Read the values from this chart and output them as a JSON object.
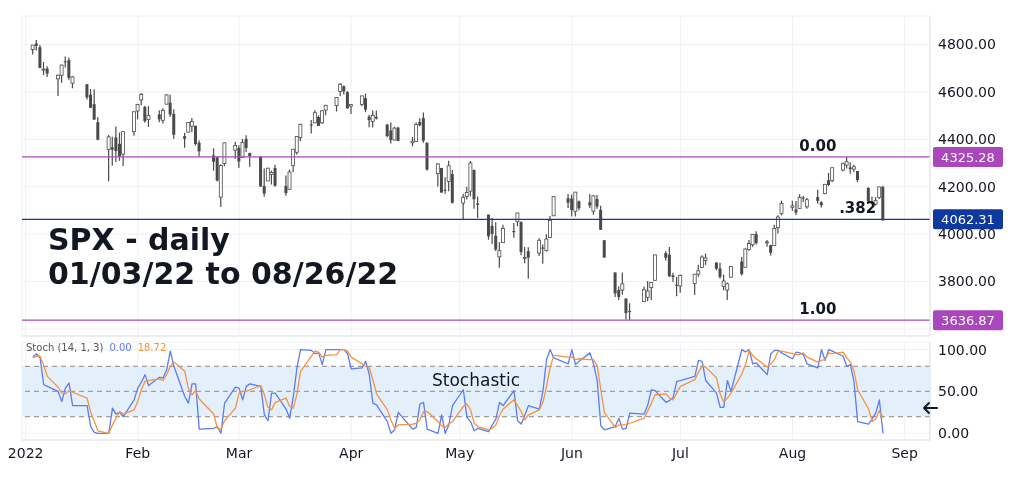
{
  "chart_data": [
    {
      "type": "candlestick",
      "title": "SPX - daily",
      "subtitle": "01/03/22 to 08/26/22",
      "color": "#4a4a4a",
      "x": [
        "2022-01-03",
        "2022-01-04",
        "2022-01-05",
        "2022-01-06",
        "2022-01-07",
        "2022-01-10",
        "2022-01-11",
        "2022-01-12",
        "2022-01-13",
        "2022-01-14",
        "2022-01-18",
        "2022-01-19",
        "2022-01-20",
        "2022-01-21",
        "2022-01-24",
        "2022-01-25",
        "2022-01-26",
        "2022-01-27",
        "2022-01-28",
        "2022-01-31",
        "2022-02-01",
        "2022-02-02",
        "2022-02-03",
        "2022-02-04",
        "2022-02-07",
        "2022-02-08",
        "2022-02-09",
        "2022-02-10",
        "2022-02-11",
        "2022-02-14",
        "2022-02-15",
        "2022-02-16",
        "2022-02-17",
        "2022-02-18",
        "2022-02-22",
        "2022-02-23",
        "2022-02-24",
        "2022-02-25",
        "2022-02-28",
        "2022-03-01",
        "2022-03-02",
        "2022-03-03",
        "2022-03-04",
        "2022-03-07",
        "2022-03-08",
        "2022-03-09",
        "2022-03-10",
        "2022-03-11",
        "2022-03-14",
        "2022-03-15",
        "2022-03-16",
        "2022-03-17",
        "2022-03-18",
        "2022-03-21",
        "2022-03-22",
        "2022-03-23",
        "2022-03-24",
        "2022-03-25",
        "2022-03-28",
        "2022-03-29",
        "2022-03-30",
        "2022-03-31",
        "2022-04-01",
        "2022-04-04",
        "2022-04-05",
        "2022-04-06",
        "2022-04-07",
        "2022-04-08",
        "2022-04-11",
        "2022-04-12",
        "2022-04-13",
        "2022-04-14",
        "2022-04-18",
        "2022-04-19",
        "2022-04-20",
        "2022-04-21",
        "2022-04-22",
        "2022-04-25",
        "2022-04-26",
        "2022-04-27",
        "2022-04-28",
        "2022-04-29",
        "2022-05-02",
        "2022-05-03",
        "2022-05-04",
        "2022-05-05",
        "2022-05-06",
        "2022-05-09",
        "2022-05-10",
        "2022-05-11",
        "2022-05-12",
        "2022-05-13",
        "2022-05-16",
        "2022-05-17",
        "2022-05-18",
        "2022-05-19",
        "2022-05-20",
        "2022-05-23",
        "2022-05-24",
        "2022-05-25",
        "2022-05-26",
        "2022-05-27",
        "2022-05-31",
        "2022-06-01",
        "2022-06-02",
        "2022-06-03",
        "2022-06-06",
        "2022-06-07",
        "2022-06-08",
        "2022-06-09",
        "2022-06-10",
        "2022-06-13",
        "2022-06-14",
        "2022-06-15",
        "2022-06-16",
        "2022-06-17",
        "2022-06-21",
        "2022-06-22",
        "2022-06-23",
        "2022-06-24",
        "2022-06-27",
        "2022-06-28",
        "2022-06-29",
        "2022-06-30",
        "2022-07-01",
        "2022-07-05",
        "2022-07-06",
        "2022-07-07",
        "2022-07-08",
        "2022-07-11",
        "2022-07-12",
        "2022-07-13",
        "2022-07-14",
        "2022-07-15",
        "2022-07-18",
        "2022-07-19",
        "2022-07-20",
        "2022-07-21",
        "2022-07-22",
        "2022-07-25",
        "2022-07-26",
        "2022-07-27",
        "2022-07-28",
        "2022-07-29",
        "2022-08-01",
        "2022-08-02",
        "2022-08-03",
        "2022-08-04",
        "2022-08-05",
        "2022-08-08",
        "2022-08-09",
        "2022-08-10",
        "2022-08-11",
        "2022-08-12",
        "2022-08-15",
        "2022-08-16",
        "2022-08-17",
        "2022-08-18",
        "2022-08-19",
        "2022-08-22",
        "2022-08-23",
        "2022-08-24",
        "2022-08-25",
        "2022-08-26"
      ],
      "ohlc": [
        [
          4778,
          4797,
          4758,
          4797
        ],
        [
          4804,
          4819,
          4774,
          4794
        ],
        [
          4788,
          4798,
          4700,
          4701
        ],
        [
          4693,
          4726,
          4671,
          4696
        ],
        [
          4698,
          4708,
          4663,
          4677
        ],
        [
          4655,
          4673,
          4582,
          4670
        ],
        [
          4670,
          4714,
          4638,
          4713
        ],
        [
          4729,
          4749,
          4703,
          4726
        ],
        [
          4734,
          4745,
          4651,
          4659
        ],
        [
          4637,
          4666,
          4615,
          4663
        ],
        [
          4632,
          4632,
          4568,
          4577
        ],
        [
          4588,
          4612,
          4531,
          4533
        ],
        [
          4548,
          4611,
          4482,
          4483
        ],
        [
          4472,
          4494,
          4396,
          4398
        ],
        [
          4357,
          4418,
          4223,
          4410
        ],
        [
          4366,
          4411,
          4288,
          4356
        ],
        [
          4408,
          4454,
          4304,
          4350
        ],
        [
          4381,
          4428,
          4309,
          4327
        ],
        [
          4337,
          4432,
          4287,
          4432
        ],
        [
          4432,
          4516,
          4415,
          4516
        ],
        [
          4519,
          4550,
          4484,
          4547
        ],
        [
          4566,
          4595,
          4544,
          4589
        ],
        [
          4536,
          4541,
          4470,
          4477
        ],
        [
          4483,
          4540,
          4452,
          4501
        ],
        [
          4505,
          4522,
          4472,
          4484
        ],
        [
          4480,
          4531,
          4466,
          4522
        ],
        [
          4548,
          4590,
          4548,
          4587
        ],
        [
          4554,
          4588,
          4494,
          4504
        ],
        [
          4507,
          4527,
          4402,
          4419
        ],
        [
          4413,
          4427,
          4364,
          4402
        ],
        [
          4430,
          4472,
          4430,
          4471
        ],
        [
          4455,
          4490,
          4430,
          4475
        ],
        [
          4457,
          4457,
          4373,
          4380
        ],
        [
          4385,
          4395,
          4327,
          4349
        ],
        [
          4332,
          4362,
          4268,
          4305
        ],
        [
          4324,
          4327,
          4222,
          4226
        ],
        [
          4156,
          4295,
          4114,
          4289
        ],
        [
          4298,
          4386,
          4287,
          4385
        ],
        [
          4354,
          4389,
          4318,
          4374
        ],
        [
          4363,
          4375,
          4279,
          4306
        ],
        [
          4323,
          4401,
          4323,
          4387
        ],
        [
          4401,
          4417,
          4346,
          4363
        ],
        [
          4342,
          4343,
          4284,
          4329
        ],
        [
          4327,
          4327,
          4199,
          4201
        ],
        [
          4203,
          4277,
          4157,
          4171
        ],
        [
          4224,
          4280,
          4224,
          4278
        ],
        [
          4252,
          4268,
          4209,
          4260
        ],
        [
          4279,
          4292,
          4200,
          4204
        ],
        [
          4203,
          4247,
          4162,
          4173
        ],
        [
          4189,
          4272,
          4187,
          4262
        ],
        [
          4289,
          4358,
          4262,
          4358
        ],
        [
          4345,
          4412,
          4336,
          4412
        ],
        [
          4407,
          4465,
          4393,
          4463
        ],
        [
          4462,
          4481,
          4424,
          4461
        ],
        [
          4469,
          4522,
          4469,
          4512
        ],
        [
          4494,
          4501,
          4456,
          4456
        ],
        [
          4469,
          4521,
          4465,
          4520
        ],
        [
          4523,
          4546,
          4501,
          4543
        ],
        [
          4542,
          4576,
          4517,
          4576
        ],
        [
          4602,
          4637,
          4582,
          4632
        ],
        [
          4624,
          4627,
          4589,
          4602
        ],
        [
          4599,
          4603,
          4530,
          4530
        ],
        [
          4540,
          4548,
          4507,
          4546
        ],
        [
          4547,
          4583,
          4539,
          4583
        ],
        [
          4573,
          4593,
          4514,
          4525
        ],
        [
          4495,
          4503,
          4451,
          4481
        ],
        [
          4475,
          4521,
          4450,
          4500
        ],
        [
          4494,
          4521,
          4483,
          4488
        ],
        [
          4462,
          4464,
          4409,
          4413
        ],
        [
          4437,
          4471,
          4382,
          4397
        ],
        [
          4397,
          4453,
          4395,
          4447
        ],
        [
          4449,
          4453,
          4392,
          4393
        ],
        [
          4385,
          4410,
          4370,
          4392
        ],
        [
          4391,
          4471,
          4391,
          4462
        ],
        [
          4473,
          4489,
          4455,
          4459
        ],
        [
          4489,
          4513,
          4385,
          4394
        ],
        [
          4385,
          4386,
          4268,
          4272
        ],
        [
          4255,
          4299,
          4201,
          4296
        ],
        [
          4279,
          4279,
          4175,
          4175
        ],
        [
          4187,
          4240,
          4170,
          4184
        ],
        [
          4222,
          4309,
          4181,
          4288
        ],
        [
          4253,
          4270,
          4129,
          4132
        ],
        [
          4131,
          4170,
          4063,
          4155
        ],
        [
          4159,
          4200,
          4146,
          4175
        ],
        [
          4181,
          4308,
          4160,
          4300
        ],
        [
          4271,
          4271,
          4107,
          4147
        ],
        [
          4129,
          4158,
          4068,
          4123
        ],
        [
          4082,
          4082,
          3976,
          3991
        ],
        [
          4035,
          4068,
          3958,
          4001
        ],
        [
          3993,
          4050,
          3929,
          3935
        ],
        [
          3904,
          3965,
          3858,
          3930
        ],
        [
          3964,
          4039,
          3964,
          4024
        ],
        [
          4013,
          4047,
          3984,
          4008
        ],
        [
          4053,
          4090,
          4033,
          4089
        ],
        [
          4052,
          4052,
          3911,
          3924
        ],
        [
          3899,
          3945,
          3877,
          3901
        ],
        [
          3928,
          3944,
          3811,
          3901
        ],
        [
          3920,
          3982,
          3908,
          3974
        ],
        [
          3943,
          3956,
          3875,
          3941
        ],
        [
          3930,
          3999,
          3926,
          3979
        ],
        [
          3985,
          4076,
          3985,
          4058
        ],
        [
          4077,
          4159,
          4077,
          4158
        ],
        [
          4151,
          4169,
          4110,
          4132
        ],
        [
          4150,
          4167,
          4074,
          4101
        ],
        [
          4096,
          4177,
          4074,
          4177
        ],
        [
          4138,
          4142,
          4099,
          4109
        ],
        [
          4134,
          4169,
          4110,
          4121
        ],
        [
          4097,
          4164,
          4081,
          4161
        ],
        [
          4148,
          4165,
          4107,
          4116
        ],
        [
          4102,
          4120,
          4017,
          4018
        ],
        [
          3974,
          3974,
          3900,
          3901
        ],
        [
          3838,
          3838,
          3735,
          3750
        ],
        [
          3764,
          3779,
          3722,
          3735
        ],
        [
          3764,
          3838,
          3744,
          3790
        ],
        [
          3728,
          3728,
          3640,
          3667
        ],
        [
          3675,
          3708,
          3637,
          3675
        ],
        [
          3715,
          3779,
          3715,
          3765
        ],
        [
          3733,
          3802,
          3717,
          3760
        ],
        [
          3774,
          3797,
          3722,
          3796
        ],
        [
          3805,
          3913,
          3805,
          3912
        ],
        [
          3920,
          3928,
          3889,
          3900
        ],
        [
          3913,
          3945,
          3820,
          3822
        ],
        [
          3826,
          3837,
          3799,
          3819
        ],
        [
          3786,
          3819,
          3738,
          3785
        ],
        [
          3781,
          3829,
          3752,
          3825
        ],
        [
          3792,
          3832,
          3743,
          3831
        ],
        [
          3831,
          3871,
          3820,
          3845
        ],
        [
          3859,
          3911,
          3858,
          3903
        ],
        [
          3889,
          3918,
          3870,
          3899
        ],
        [
          3880,
          3880,
          3847,
          3854
        ],
        [
          3855,
          3879,
          3812,
          3819
        ],
        [
          3779,
          3829,
          3763,
          3802
        ],
        [
          3764,
          3796,
          3722,
          3790
        ],
        [
          3818,
          3863,
          3818,
          3863
        ],
        [
          3884,
          3903,
          3825,
          3831
        ],
        [
          3860,
          3939,
          3860,
          3937
        ],
        [
          3935,
          3975,
          3930,
          3960
        ],
        [
          3955,
          4000,
          3946,
          3999
        ],
        [
          4000,
          4012,
          3956,
          3962
        ],
        [
          3965,
          3975,
          3946,
          3967
        ],
        [
          3954,
          3954,
          3910,
          3921
        ],
        [
          3951,
          4039,
          3951,
          4024
        ],
        [
          4027,
          4079,
          4002,
          4072
        ],
        [
          4087,
          4141,
          4079,
          4130
        ],
        [
          4113,
          4141,
          4098,
          4119
        ],
        [
          4104,
          4140,
          4080,
          4091
        ],
        [
          4108,
          4168,
          4108,
          4155
        ],
        [
          4154,
          4161,
          4135,
          4152
        ],
        [
          4115,
          4152,
          4107,
          4145
        ],
        [
          4156,
          4187,
          4128,
          4140
        ],
        [
          4134,
          4138,
          4112,
          4122
        ],
        [
          4171,
          4211,
          4168,
          4210
        ],
        [
          4227,
          4258,
          4202,
          4207
        ],
        [
          4225,
          4280,
          4219,
          4280
        ],
        [
          4270,
          4302,
          4265,
          4297
        ],
        [
          4291,
          4325,
          4277,
          4305
        ],
        [
          4281,
          4303,
          4255,
          4274
        ],
        [
          4274,
          4292,
          4262,
          4284
        ],
        [
          4266,
          4266,
          4219,
          4228
        ],
        [
          4195,
          4196,
          4130,
          4138
        ],
        [
          4134,
          4159,
          4125,
          4129
        ],
        [
          4126,
          4156,
          4120,
          4141
        ],
        [
          4154,
          4200,
          4148,
          4199
        ],
        [
          4199,
          4204,
          4057,
          4058
        ]
      ],
      "xlim": [
        "2021-12-31",
        "2022-09-08"
      ],
      "xticks": [
        {
          "value": "2022-01-01",
          "label": null
        },
        {
          "value": "2022-02-01",
          "label": null
        },
        {
          "value": "2022-03-01",
          "label": null
        },
        {
          "value": "2022-04-01",
          "label": null
        },
        {
          "value": "2022-05-01",
          "label": null
        },
        {
          "value": "2022-06-01",
          "label": null
        },
        {
          "value": "2022-07-01",
          "label": null
        },
        {
          "value": "2022-08-01",
          "label": null
        },
        {
          "value": "2022-09-01",
          "label": null
        }
      ],
      "ylim": [
        3570,
        4920
      ],
      "yticks": [
        {
          "value": 3600,
          "label": null
        },
        {
          "value": 3800,
          "label": "3800.00"
        },
        {
          "value": 4000,
          "label": "4000.00"
        },
        {
          "value": 4200,
          "label": "4200.00"
        },
        {
          "value": 4400,
          "label": "4400.00"
        },
        {
          "value": 4600,
          "label": "4600.00"
        },
        {
          "value": 4800,
          "label": "4800.00"
        }
      ],
      "tick_labels": "y",
      "grid": true,
      "ref_lines": [
        {
          "axis": "y",
          "value": 4325.28,
          "label": "4325.28",
          "color": "#ab47bc"
        },
        {
          "axis": "y",
          "value": 4062.31,
          "label": "4062.31",
          "color": "#0d3a9c"
        },
        {
          "axis": "y",
          "value": 3636.87,
          "label": "3636.87",
          "color": "#ab47bc"
        }
      ],
      "annotations": [
        {
          "text": "0.00",
          "x": "2022-08-08",
          "y": 4325.28
        },
        {
          "text": ".382",
          "x": "2022-08-19",
          "y": 4062.31
        },
        {
          "text": "1.00",
          "x": "2022-08-08",
          "y": 3636.87
        }
      ]
    },
    {
      "type": "line",
      "title": "Stoch (14, 1, 3)",
      "annotations": [
        "0.00",
        "18.72"
      ],
      "x": [
        "2022-01-03",
        "2022-01-04",
        "2022-01-05",
        "2022-01-06",
        "2022-01-07",
        "2022-01-10",
        "2022-01-11",
        "2022-01-12",
        "2022-01-13",
        "2022-01-14",
        "2022-01-18",
        "2022-01-19",
        "2022-01-20",
        "2022-01-21",
        "2022-01-24",
        "2022-01-25",
        "2022-01-26",
        "2022-01-27",
        "2022-01-28",
        "2022-01-31",
        "2022-02-01",
        "2022-02-02",
        "2022-02-03",
        "2022-02-04",
        "2022-02-07",
        "2022-02-08",
        "2022-02-09",
        "2022-02-10",
        "2022-02-11",
        "2022-02-14",
        "2022-02-15",
        "2022-02-16",
        "2022-02-17",
        "2022-02-18",
        "2022-02-22",
        "2022-02-23",
        "2022-02-24",
        "2022-02-25",
        "2022-02-28",
        "2022-03-01",
        "2022-03-02",
        "2022-03-03",
        "2022-03-04",
        "2022-03-07",
        "2022-03-08",
        "2022-03-09",
        "2022-03-10",
        "2022-03-11",
        "2022-03-14",
        "2022-03-15",
        "2022-03-16",
        "2022-03-17",
        "2022-03-18",
        "2022-03-21",
        "2022-03-22",
        "2022-03-23",
        "2022-03-24",
        "2022-03-25",
        "2022-03-28",
        "2022-03-29",
        "2022-03-30",
        "2022-03-31",
        "2022-04-01",
        "2022-04-04",
        "2022-04-05",
        "2022-04-06",
        "2022-04-07",
        "2022-04-08",
        "2022-04-11",
        "2022-04-12",
        "2022-04-13",
        "2022-04-14",
        "2022-04-18",
        "2022-04-19",
        "2022-04-20",
        "2022-04-21",
        "2022-04-22",
        "2022-04-25",
        "2022-04-26",
        "2022-04-27",
        "2022-04-28",
        "2022-04-29",
        "2022-05-02",
        "2022-05-03",
        "2022-05-04",
        "2022-05-05",
        "2022-05-06",
        "2022-05-09",
        "2022-05-10",
        "2022-05-11",
        "2022-05-12",
        "2022-05-13",
        "2022-05-16",
        "2022-05-17",
        "2022-05-18",
        "2022-05-19",
        "2022-05-20",
        "2022-05-23",
        "2022-05-24",
        "2022-05-25",
        "2022-05-26",
        "2022-05-27",
        "2022-05-31",
        "2022-06-01",
        "2022-06-02",
        "2022-06-03",
        "2022-06-06",
        "2022-06-07",
        "2022-06-08",
        "2022-06-09",
        "2022-06-10",
        "2022-06-13",
        "2022-06-14",
        "2022-06-15",
        "2022-06-16",
        "2022-06-17",
        "2022-06-21",
        "2022-06-22",
        "2022-06-23",
        "2022-06-24",
        "2022-06-27",
        "2022-06-28",
        "2022-06-29",
        "2022-06-30",
        "2022-07-01",
        "2022-07-05",
        "2022-07-06",
        "2022-07-07",
        "2022-07-08",
        "2022-07-11",
        "2022-07-12",
        "2022-07-13",
        "2022-07-14",
        "2022-07-15",
        "2022-07-18",
        "2022-07-19",
        "2022-07-20",
        "2022-07-21",
        "2022-07-22",
        "2022-07-25",
        "2022-07-26",
        "2022-07-27",
        "2022-07-28",
        "2022-07-29",
        "2022-08-01",
        "2022-08-02",
        "2022-08-03",
        "2022-08-04",
        "2022-08-05",
        "2022-08-08",
        "2022-08-09",
        "2022-08-10",
        "2022-08-11",
        "2022-08-12",
        "2022-08-15",
        "2022-08-16",
        "2022-08-17",
        "2022-08-18",
        "2022-08-19",
        "2022-08-22",
        "2022-08-23",
        "2022-08-24",
        "2022-08-25",
        "2022-08-26"
      ],
      "series": [
        {
          "color": "#5b7cf5",
          "values": [
            91,
            95,
            90,
            58,
            56,
            50,
            38,
            54,
            60,
            33,
            33,
            8,
            1,
            0,
            0,
            30,
            23,
            25,
            20,
            40,
            54,
            61,
            70,
            57,
            67,
            66,
            76,
            98,
            80,
            44,
            36,
            59,
            59,
            5,
            6,
            8,
            0,
            36,
            55,
            54,
            40,
            56,
            59,
            56,
            22,
            15,
            48,
            48,
            29,
            18,
            44,
            78,
            100,
            99,
            95,
            96,
            82,
            100,
            100,
            100,
            100,
            95,
            77,
            78,
            86,
            70,
            36,
            34,
            14,
            0,
            4,
            25,
            5,
            7,
            35,
            37,
            5,
            0,
            22,
            0,
            10,
            33,
            52,
            19,
            14,
            3,
            6,
            2,
            10,
            17,
            37,
            33,
            51,
            15,
            11,
            22,
            33,
            29,
            50,
            88,
            100,
            90,
            83,
            100,
            82,
            86,
            96,
            83,
            63,
            9,
            4,
            8,
            18,
            5,
            6,
            24,
            23,
            34,
            52,
            51,
            37,
            39,
            43,
            62,
            63,
            68,
            87,
            86,
            63,
            48,
            31,
            31,
            63,
            50,
            100,
            97,
            100,
            83,
            84,
            70,
            95,
            99,
            99,
            96,
            89,
            97,
            96,
            94,
            83,
            78,
            100,
            87,
            100,
            98,
            92,
            80,
            82,
            61,
            14,
            11,
            17,
            24,
            40,
            0
          ]
        },
        {
          "color": "#f7923e",
          "values": [
            90,
            92,
            92,
            81,
            68,
            55,
            48,
            47,
            51,
            49,
            42,
            25,
            14,
            3,
            0,
            10,
            18,
            26,
            23,
            28,
            38,
            52,
            62,
            63,
            65,
            63,
            70,
            80,
            85,
            74,
            53,
            46,
            51,
            41,
            23,
            6,
            5,
            15,
            30,
            48,
            50,
            50,
            52,
            57,
            46,
            31,
            28,
            37,
            42,
            32,
            30,
            47,
            74,
            92,
            98,
            97,
            91,
            93,
            94,
            100,
            100,
            98,
            91,
            83,
            80,
            78,
            64,
            47,
            28,
            16,
            6,
            10,
            11,
            12,
            16,
            26,
            26,
            14,
            9,
            7,
            11,
            14,
            32,
            35,
            28,
            12,
            8,
            4,
            6,
            10,
            21,
            29,
            40,
            33,
            26,
            16,
            22,
            28,
            37,
            56,
            79,
            93,
            91,
            91,
            88,
            89,
            88,
            88,
            81,
            52,
            25,
            7,
            10,
            10,
            10,
            12,
            18,
            27,
            36,
            46,
            47,
            42,
            40,
            48,
            56,
            64,
            73,
            80,
            79,
            66,
            47,
            37,
            42,
            48,
            71,
            82,
            99,
            93,
            89,
            79,
            83,
            88,
            98,
            98,
            95,
            94,
            94,
            96,
            91,
            85,
            87,
            88,
            96,
            95,
            97,
            90,
            85,
            74,
            52,
            29,
            14,
            17,
            27,
            18.72
          ]
        }
      ],
      "xlim": [
        "2021-12-31",
        "2022-09-08"
      ],
      "xticks": [
        {
          "value": "2022-01-01",
          "label": "2022"
        },
        {
          "value": "2022-02-01",
          "label": "Feb"
        },
        {
          "value": "2022-03-01",
          "label": "Mar"
        },
        {
          "value": "2022-04-01",
          "label": "Apr"
        },
        {
          "value": "2022-05-01",
          "label": "May"
        },
        {
          "value": "2022-06-01",
          "label": "Jun"
        },
        {
          "value": "2022-07-01",
          "label": "Jul"
        },
        {
          "value": "2022-08-01",
          "label": "Aug"
        },
        {
          "value": "2022-09-01",
          "label": "Sep"
        }
      ],
      "ylim": [
        -8,
        109
      ],
      "yticks": [
        {
          "value": 0,
          "label": "0.00"
        },
        {
          "value": 50,
          "label": "50.00"
        },
        {
          "value": 100,
          "label": "100.00"
        }
      ],
      "grid": true,
      "marker": "none",
      "line_style": "solid",
      "ref_lines": [
        {
          "axis": "y",
          "value": 80,
          "color": "#9e9e9e",
          "line_style": "dashed"
        },
        {
          "axis": "y",
          "value": 50,
          "color": "#9e9e9e",
          "line_style": "dashed"
        },
        {
          "axis": "y",
          "value": 20,
          "color": "#9e9e9e",
          "line_style": "dashed"
        }
      ],
      "bands": [
        {
          "axis": "y",
          "from": 20,
          "to": 80,
          "label": "Stochastic",
          "color": "#e3f0fc"
        }
      ]
    }
  ]
}
